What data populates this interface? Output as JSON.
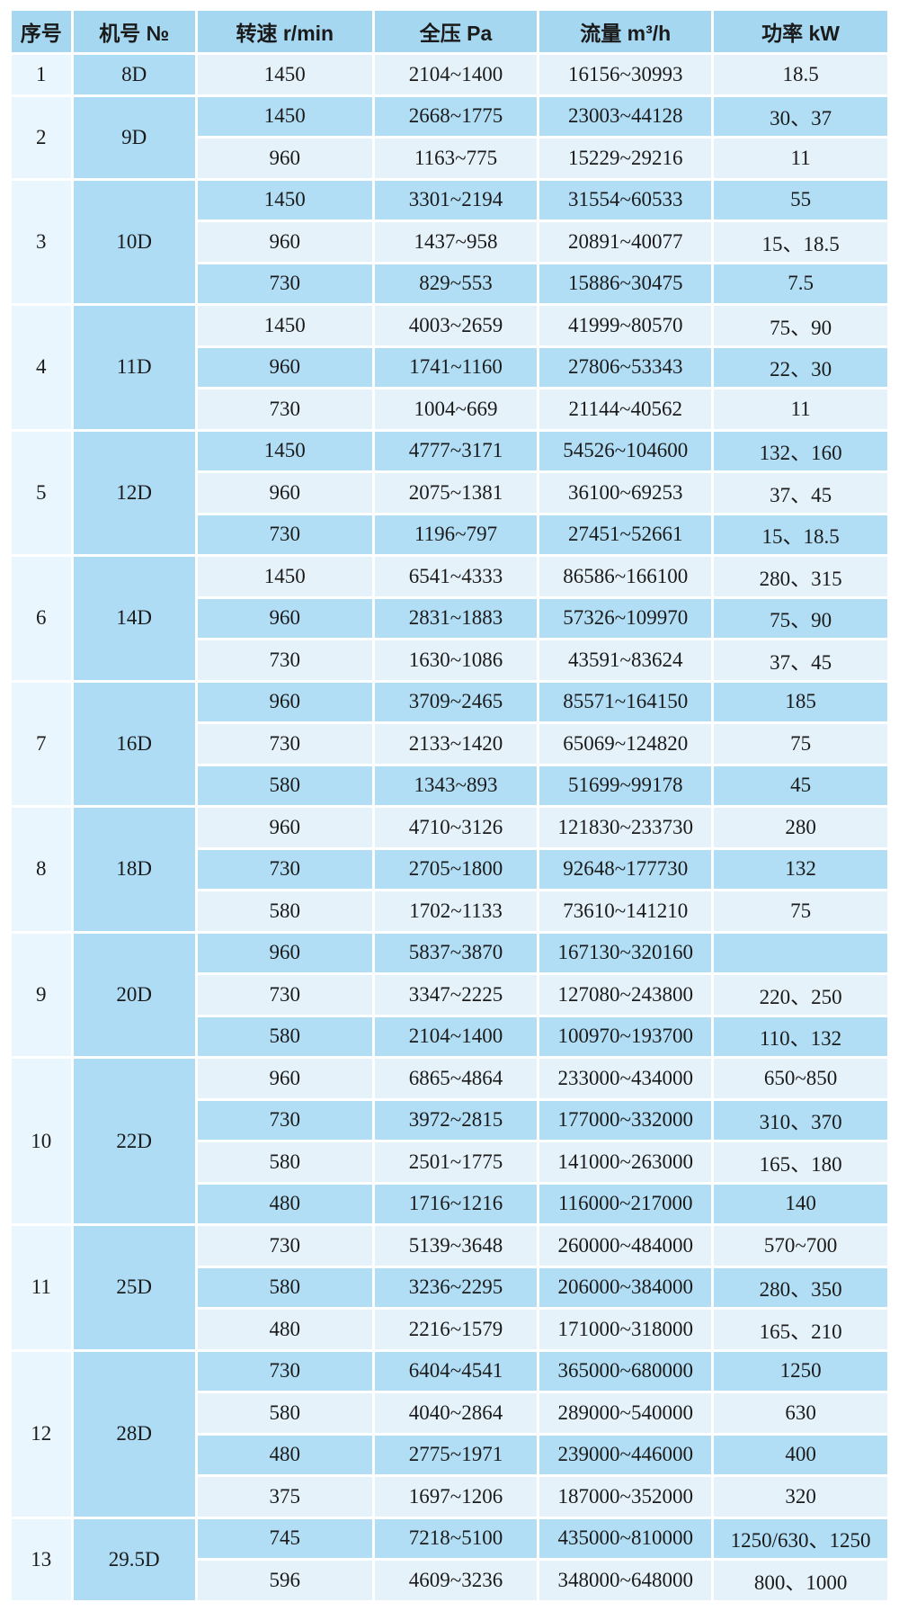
{
  "table": {
    "colors": {
      "header_bg": "#a6d7f1",
      "row_light": "#e5f2fa",
      "row_medium": "#b2def5",
      "model_col_bg": "#addcf4",
      "index_col_bg": "#e9f6fd",
      "divider": "#ffffff",
      "text": "#1a1a1a"
    },
    "headers": [
      "序号",
      "机号 №",
      "转速 r/min",
      "全压 Pa",
      "流量 m³/h",
      "功率 kW"
    ],
    "groups": [
      {
        "no": "1",
        "model": "8D",
        "rows": [
          [
            "1450",
            "2104~1400",
            "16156~30993",
            "18.5"
          ]
        ]
      },
      {
        "no": "2",
        "model": "9D",
        "rows": [
          [
            "1450",
            "2668~1775",
            "23003~44128",
            "30、37"
          ],
          [
            "960",
            "1163~775",
            "15229~29216",
            "11"
          ]
        ]
      },
      {
        "no": "3",
        "model": "10D",
        "rows": [
          [
            "1450",
            "3301~2194",
            "31554~60533",
            "55"
          ],
          [
            "960",
            "1437~958",
            "20891~40077",
            "15、18.5"
          ],
          [
            "730",
            "829~553",
            "15886~30475",
            "7.5"
          ]
        ]
      },
      {
        "no": "4",
        "model": "11D",
        "rows": [
          [
            "1450",
            "4003~2659",
            "41999~80570",
            "75、90"
          ],
          [
            "960",
            "1741~1160",
            "27806~53343",
            "22、30"
          ],
          [
            "730",
            "1004~669",
            "21144~40562",
            "11"
          ]
        ]
      },
      {
        "no": "5",
        "model": "12D",
        "rows": [
          [
            "1450",
            "4777~3171",
            "54526~104600",
            "132、160"
          ],
          [
            "960",
            "2075~1381",
            "36100~69253",
            "37、45"
          ],
          [
            "730",
            "1196~797",
            "27451~52661",
            "15、18.5"
          ]
        ]
      },
      {
        "no": "6",
        "model": "14D",
        "rows": [
          [
            "1450",
            "6541~4333",
            "86586~166100",
            "280、315"
          ],
          [
            "960",
            "2831~1883",
            "57326~109970",
            "75、90"
          ],
          [
            "730",
            "1630~1086",
            "43591~83624",
            "37、45"
          ]
        ]
      },
      {
        "no": "7",
        "model": "16D",
        "rows": [
          [
            "960",
            "3709~2465",
            "85571~164150",
            "185"
          ],
          [
            "730",
            "2133~1420",
            "65069~124820",
            "75"
          ],
          [
            "580",
            "1343~893",
            "51699~99178",
            "45"
          ]
        ]
      },
      {
        "no": "8",
        "model": "18D",
        "rows": [
          [
            "960",
            "4710~3126",
            "121830~233730",
            "280"
          ],
          [
            "730",
            "2705~1800",
            "92648~177730",
            "132"
          ],
          [
            "580",
            "1702~1133",
            "73610~141210",
            "75"
          ]
        ]
      },
      {
        "no": "9",
        "model": "20D",
        "rows": [
          [
            "960",
            "5837~3870",
            "167130~320160",
            ""
          ],
          [
            "730",
            "3347~2225",
            "127080~243800",
            "220、250"
          ],
          [
            "580",
            "2104~1400",
            "100970~193700",
            "110、132"
          ]
        ]
      },
      {
        "no": "10",
        "model": "22D",
        "rows": [
          [
            "960",
            "6865~4864",
            "233000~434000",
            "650~850"
          ],
          [
            "730",
            "3972~2815",
            "177000~332000",
            "310、370"
          ],
          [
            "580",
            "2501~1775",
            "141000~263000",
            "165、180"
          ],
          [
            "480",
            "1716~1216",
            "116000~217000",
            "140"
          ]
        ]
      },
      {
        "no": "11",
        "model": "25D",
        "rows": [
          [
            "730",
            "5139~3648",
            "260000~484000",
            "570~700"
          ],
          [
            "580",
            "3236~2295",
            "206000~384000",
            "280、350"
          ],
          [
            "480",
            "2216~1579",
            "171000~318000",
            "165、210"
          ]
        ]
      },
      {
        "no": "12",
        "model": "28D",
        "rows": [
          [
            "730",
            "6404~4541",
            "365000~680000",
            "1250"
          ],
          [
            "580",
            "4040~2864",
            "289000~540000",
            "630"
          ],
          [
            "480",
            "2775~1971",
            "239000~446000",
            "400"
          ],
          [
            "375",
            "1697~1206",
            "187000~352000",
            "320"
          ]
        ]
      },
      {
        "no": "13",
        "model": "29.5D",
        "rows": [
          [
            "745",
            "7218~5100",
            "435000~810000",
            "1250/630、1250"
          ],
          [
            "596",
            "4609~3236",
            "348000~648000",
            "800、1000"
          ]
        ]
      }
    ]
  }
}
